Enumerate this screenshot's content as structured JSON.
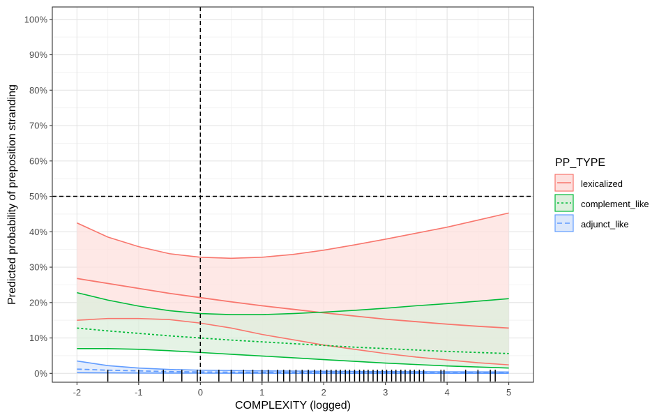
{
  "chart_data": {
    "type": "line",
    "xlabel": "COMPLEXITY (logged)",
    "ylabel": "Predicted probability of preposition stranding",
    "xlim": [
      -2.4,
      5.4
    ],
    "ylim": [
      -2.5,
      103.5
    ],
    "x_ticks": [
      -2,
      -1,
      0,
      1,
      2,
      3,
      4,
      5
    ],
    "x_tick_labels": [
      "-2",
      "-1",
      "0",
      "1",
      "2",
      "3",
      "4",
      "5"
    ],
    "y_ticks": [
      0,
      10,
      20,
      30,
      40,
      50,
      60,
      70,
      80,
      90,
      100
    ],
    "y_tick_labels": [
      "0%",
      "10%",
      "20%",
      "30%",
      "40%",
      "50%",
      "60%",
      "70%",
      "80%",
      "90%",
      "100%"
    ],
    "grid": true,
    "reference_lines": {
      "x": 0,
      "y": 50
    },
    "legend": {
      "title": "PP_TYPE",
      "position": "right",
      "entries": [
        "lexicalized",
        "complement_like",
        "adjunct_like"
      ]
    },
    "x": [
      -2,
      -1.5,
      -1,
      -0.5,
      0,
      0.5,
      1,
      1.5,
      2,
      2.5,
      3,
      3.5,
      4,
      4.5,
      5
    ],
    "series": [
      {
        "name": "lexicalized",
        "color": "#F8766D",
        "linestyle": "solid",
        "fill": "#fde0de",
        "values": [
          26.8,
          25.4,
          24.0,
          22.6,
          21.4,
          20.2,
          19.1,
          18.1,
          17.1,
          16.2,
          15.3,
          14.6,
          13.9,
          13.3,
          12.8
        ],
        "lower": [
          15.0,
          15.5,
          15.5,
          15.2,
          14.2,
          12.8,
          11.0,
          9.5,
          8.0,
          6.8,
          5.6,
          4.6,
          3.8,
          3.0,
          2.4
        ],
        "upper": [
          42.5,
          38.5,
          35.8,
          33.8,
          32.8,
          32.5,
          32.8,
          33.6,
          34.8,
          36.3,
          37.9,
          39.6,
          41.3,
          43.3,
          45.3
        ]
      },
      {
        "name": "complement_like",
        "color": "#00BA38",
        "linestyle": "dotted",
        "fill": "#dcefdc",
        "values": [
          12.8,
          12.0,
          11.3,
          10.6,
          10.0,
          9.4,
          8.9,
          8.4,
          7.9,
          7.4,
          7.0,
          6.6,
          6.2,
          5.9,
          5.6
        ],
        "lower": [
          7.0,
          7.0,
          6.8,
          6.4,
          5.9,
          5.4,
          4.9,
          4.4,
          3.9,
          3.4,
          2.9,
          2.5,
          2.1,
          1.8,
          1.5
        ],
        "upper": [
          22.8,
          20.7,
          19.0,
          17.7,
          16.9,
          16.6,
          16.6,
          16.9,
          17.3,
          17.8,
          18.4,
          19.1,
          19.7,
          20.4,
          21.1
        ]
      },
      {
        "name": "adjunct_like",
        "color": "#619CFF",
        "linestyle": "dashed",
        "fill": "#dbe7fb",
        "values": [
          1.2,
          0.9,
          0.7,
          0.5,
          0.4,
          0.35,
          0.3,
          0.28,
          0.26,
          0.24,
          0.22,
          0.2,
          0.18,
          0.16,
          0.15
        ],
        "lower": [
          0.2,
          0.15,
          0.1,
          0.08,
          0.06,
          0.05,
          0.04,
          0.03,
          0.03,
          0.02,
          0.02,
          0.02,
          0.01,
          0.01,
          0.01
        ],
        "upper": [
          3.5,
          2.2,
          1.5,
          1.1,
          0.9,
          0.8,
          0.7,
          0.65,
          0.6,
          0.55,
          0.5,
          0.48,
          0.45,
          0.42,
          0.4
        ]
      }
    ],
    "rug_x": [
      -1.5,
      -1.0,
      -0.6,
      -0.3,
      -0.05,
      0.3,
      0.5,
      0.7,
      0.85,
      1.0,
      1.1,
      1.25,
      1.35,
      1.45,
      1.55,
      1.65,
      1.75,
      1.85,
      1.95,
      2.05,
      2.12,
      2.2,
      2.27,
      2.35,
      2.42,
      2.5,
      2.58,
      2.65,
      2.72,
      2.8,
      2.87,
      2.95,
      3.02,
      3.1,
      3.17,
      3.25,
      3.32,
      3.4,
      3.47,
      3.55,
      3.62,
      3.9,
      3.95,
      4.3,
      4.5,
      4.7,
      4.78
    ]
  }
}
